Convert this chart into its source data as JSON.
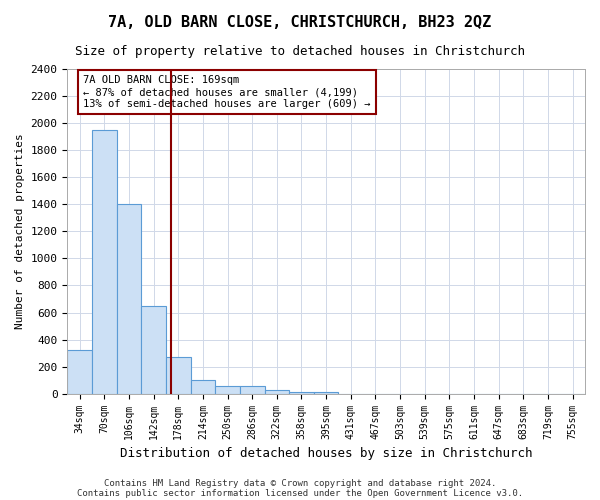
{
  "title": "7A, OLD BARN CLOSE, CHRISTCHURCH, BH23 2QZ",
  "subtitle": "Size of property relative to detached houses in Christchurch",
  "xlabel": "Distribution of detached houses by size in Christchurch",
  "ylabel": "Number of detached properties",
  "footnote1": "Contains HM Land Registry data © Crown copyright and database right 2024.",
  "footnote2": "Contains public sector information licensed under the Open Government Licence v3.0.",
  "bin_labels": [
    "34sqm",
    "70sqm",
    "106sqm",
    "142sqm",
    "178sqm",
    "214sqm",
    "250sqm",
    "286sqm",
    "322sqm",
    "358sqm",
    "395sqm",
    "431sqm",
    "467sqm",
    "503sqm",
    "539sqm",
    "575sqm",
    "611sqm",
    "647sqm",
    "683sqm",
    "719sqm",
    "755sqm"
  ],
  "bar_heights": [
    320,
    1950,
    1400,
    650,
    270,
    100,
    60,
    60,
    30,
    10,
    10,
    0,
    0,
    0,
    0,
    0,
    0,
    0,
    0,
    0,
    0
  ],
  "bar_color": "#cce0f5",
  "bar_edge_color": "#5b9bd5",
  "vline_x": 3.72,
  "vline_color": "#8b0000",
  "annotation_text": "7A OLD BARN CLOSE: 169sqm\n← 87% of detached houses are smaller (4,199)\n13% of semi-detached houses are larger (609) →",
  "annotation_box_color": "#8b0000",
  "ylim": [
    0,
    2400
  ],
  "yticks": [
    0,
    200,
    400,
    600,
    800,
    1000,
    1200,
    1400,
    1600,
    1800,
    2000,
    2200,
    2400
  ],
  "background_color": "#ffffff",
  "grid_color": "#d0d8e8"
}
